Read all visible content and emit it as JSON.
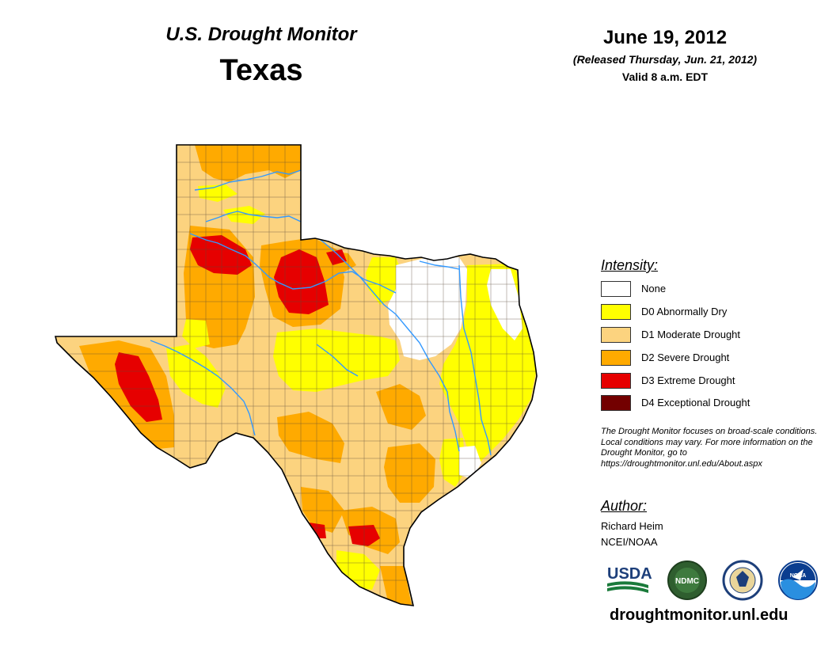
{
  "header": {
    "series_title": "U.S. Drought Monitor",
    "state": "Texas",
    "map_date": "June 19, 2012",
    "released": "(Released Thursday, Jun. 21, 2012)",
    "valid": "Valid 8 a.m. EDT"
  },
  "legend": {
    "heading": "Intensity:",
    "items": [
      {
        "label": "None",
        "color": "#ffffff"
      },
      {
        "label": "D0 Abnormally Dry",
        "color": "#ffff00"
      },
      {
        "label": "D1 Moderate Drought",
        "color": "#fcd37f"
      },
      {
        "label": "D2 Severe Drought",
        "color": "#ffaa00"
      },
      {
        "label": "D3 Extreme Drought",
        "color": "#e60000"
      },
      {
        "label": "D4 Exceptional Drought",
        "color": "#730000"
      }
    ]
  },
  "disclaimer": "The Drought Monitor focuses on broad-scale conditions. Local conditions may vary. For more information on the Drought Monitor, go to https://droughtmonitor.unl.edu/About.aspx",
  "author": {
    "heading": "Author:",
    "name": "Richard Heim",
    "org": "NCEI/NOAA"
  },
  "logos": {
    "usda": "USDA",
    "ndmc": "NDMC",
    "noaa": "NOAA"
  },
  "website": "droughtmonitor.unl.edu",
  "colors": {
    "river": "#3399ff",
    "county_lines": "#5a4a3a",
    "state_outline": "#000000"
  }
}
